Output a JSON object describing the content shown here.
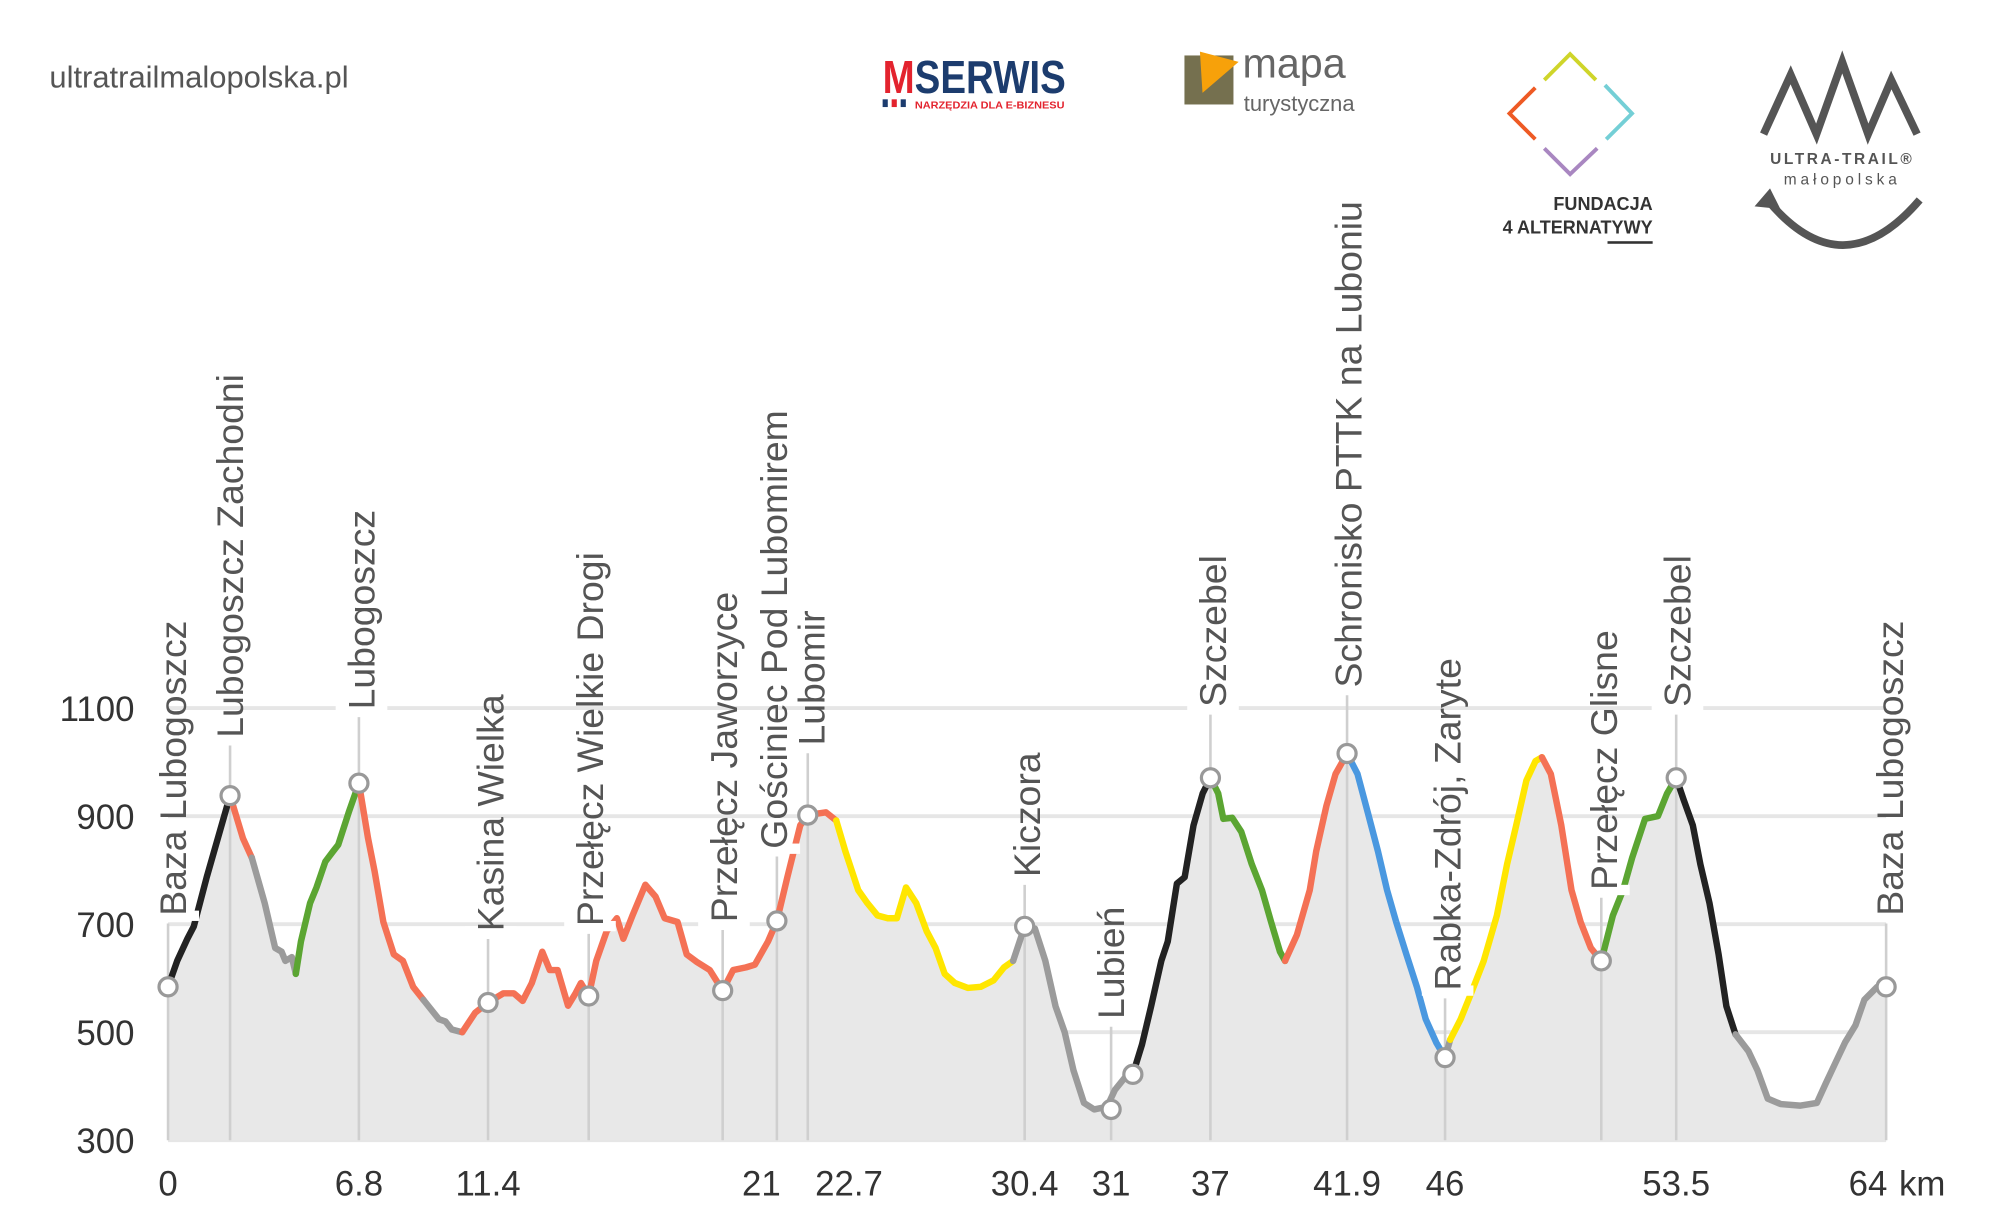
{
  "header": {
    "site": "ultratrailmalopolska.pl"
  },
  "logos": {
    "mserwis": {
      "m": "M",
      "rest": "SERWIS",
      "tagline": "NARZĘDZIA DLA E-BIZNESU"
    },
    "mapa": {
      "line1": "mapa",
      "line2": "turystyczna"
    },
    "fundacja": {
      "line1": "FUNDACJA",
      "line2": "4 ALTERNATYWY"
    },
    "utmp": {
      "line1": "ULTRA-TRAIL®",
      "line2": "małopolska"
    }
  },
  "colors": {
    "black": "#222222",
    "red": "#f47155",
    "gray": "#9b9b9b",
    "green": "#5ba532",
    "yellow": "#ffe600",
    "blue": "#4a98e0",
    "fill": "#e8e8e8",
    "grid": "#e6e6e6"
  },
  "chart_data": {
    "type": "area",
    "title": "",
    "xlabel": "",
    "x_unit": "km",
    "ylabel": "",
    "ylim": [
      300,
      1100
    ],
    "yticks": [
      300,
      500,
      700,
      900,
      1100
    ],
    "xlim": [
      0,
      64
    ],
    "grid": true,
    "segments": [
      {
        "color": "black",
        "points": [
          [
            0,
            584
          ],
          [
            0.34,
            632
          ],
          [
            0.72,
            673
          ],
          [
            0.96,
            696
          ],
          [
            1.44,
            787
          ],
          [
            2.31,
            938
          ]
        ]
      },
      {
        "color": "red",
        "points": [
          [
            2.31,
            938
          ],
          [
            2.79,
            859
          ],
          [
            3.12,
            823
          ]
        ]
      },
      {
        "color": "gray",
        "points": [
          [
            3.12,
            823
          ],
          [
            3.6,
            739
          ],
          [
            3.99,
            656
          ],
          [
            4.23,
            649
          ],
          [
            4.37,
            632
          ],
          [
            4.61,
            639
          ],
          [
            4.76,
            608
          ]
        ]
      },
      {
        "color": "green",
        "points": [
          [
            4.76,
            608
          ],
          [
            4.95,
            668
          ],
          [
            5.29,
            739
          ],
          [
            5.53,
            768
          ],
          [
            5.86,
            816
          ],
          [
            6.15,
            835
          ],
          [
            6.34,
            847
          ],
          [
            6.73,
            907
          ],
          [
            7.11,
            961
          ]
        ]
      },
      {
        "color": "red",
        "points": [
          [
            7.11,
            961
          ],
          [
            7.45,
            859
          ],
          [
            7.69,
            799
          ],
          [
            8.02,
            704
          ],
          [
            8.41,
            644
          ],
          [
            8.75,
            632
          ],
          [
            9.13,
            584
          ],
          [
            9.51,
            560
          ]
        ]
      },
      {
        "color": "gray",
        "points": [
          [
            9.51,
            560
          ],
          [
            10.09,
            524
          ],
          [
            10.33,
            520
          ],
          [
            10.57,
            505
          ],
          [
            10.96,
            500
          ]
        ]
      },
      {
        "color": "red",
        "points": [
          [
            10.96,
            500
          ],
          [
            11.44,
            536
          ],
          [
            11.92,
            555
          ],
          [
            12.49,
            572
          ],
          [
            12.88,
            572
          ],
          [
            13.21,
            558
          ],
          [
            13.55,
            591
          ],
          [
            13.94,
            649
          ],
          [
            14.22,
            615
          ],
          [
            14.51,
            615
          ],
          [
            14.9,
            549
          ],
          [
            15.18,
            572
          ],
          [
            15.38,
            591
          ],
          [
            15.67,
            567
          ],
          [
            15.95,
            632
          ],
          [
            16.34,
            687
          ],
          [
            16.72,
            711
          ],
          [
            16.96,
            673
          ],
          [
            17.3,
            716
          ],
          [
            17.78,
            773
          ],
          [
            18.16,
            751
          ],
          [
            18.5,
            711
          ],
          [
            18.98,
            704
          ],
          [
            19.32,
            644
          ],
          [
            19.7,
            630
          ],
          [
            20.18,
            615
          ],
          [
            20.66,
            577
          ],
          [
            21.05,
            615
          ],
          [
            21.53,
            620
          ],
          [
            21.86,
            625
          ],
          [
            22.35,
            668
          ],
          [
            22.68,
            706
          ],
          [
            23.07,
            787
          ],
          [
            23.55,
            883
          ],
          [
            23.83,
            902
          ],
          [
            24.51,
            907
          ],
          [
            24.89,
            892
          ]
        ]
      },
      {
        "color": "yellow",
        "points": [
          [
            24.89,
            892
          ],
          [
            25.23,
            835
          ],
          [
            25.71,
            763
          ],
          [
            26.05,
            739
          ],
          [
            26.43,
            716
          ],
          [
            26.81,
            711
          ],
          [
            27.15,
            711
          ],
          [
            27.49,
            768
          ],
          [
            27.87,
            739
          ],
          [
            28.26,
            687
          ],
          [
            28.59,
            656
          ],
          [
            28.93,
            608
          ],
          [
            29.31,
            591
          ],
          [
            29.79,
            582
          ],
          [
            30.27,
            584
          ],
          [
            30.75,
            596
          ],
          [
            31.14,
            620
          ],
          [
            31.48,
            632
          ]
        ]
      },
      {
        "color": "gray",
        "points": [
          [
            31.48,
            632
          ],
          [
            31.91,
            696
          ],
          [
            32.29,
            692
          ],
          [
            32.68,
            632
          ],
          [
            33.06,
            548
          ],
          [
            33.4,
            500
          ],
          [
            33.73,
            429
          ],
          [
            34.12,
            369
          ],
          [
            34.5,
            357
          ],
          [
            34.98,
            362
          ],
          [
            35.27,
            393
          ],
          [
            35.66,
            417
          ],
          [
            35.94,
            422
          ]
        ]
      },
      {
        "color": "black",
        "points": [
          [
            35.94,
            422
          ],
          [
            36.28,
            477
          ],
          [
            36.62,
            548
          ],
          [
            37,
            632
          ],
          [
            37.24,
            668
          ],
          [
            37.58,
            775
          ],
          [
            37.87,
            787
          ],
          [
            38.2,
            883
          ],
          [
            38.54,
            942
          ],
          [
            38.83,
            971
          ]
        ]
      },
      {
        "color": "green",
        "points": [
          [
            38.83,
            971
          ],
          [
            39.12,
            942
          ],
          [
            39.31,
            895
          ],
          [
            39.64,
            897
          ],
          [
            39.98,
            871
          ],
          [
            40.37,
            811
          ],
          [
            40.75,
            763
          ],
          [
            41.09,
            704
          ],
          [
            41.42,
            649
          ],
          [
            41.61,
            632
          ]
        ]
      },
      {
        "color": "red",
        "points": [
          [
            41.61,
            632
          ],
          [
            42.05,
            680
          ],
          [
            42.53,
            763
          ],
          [
            42.77,
            835
          ],
          [
            43.15,
            919
          ],
          [
            43.49,
            978
          ],
          [
            43.92,
            1016
          ]
        ]
      },
      {
        "color": "blue",
        "points": [
          [
            43.92,
            1016
          ],
          [
            44.31,
            978
          ],
          [
            44.69,
            907
          ],
          [
            45.07,
            835
          ],
          [
            45.41,
            763
          ],
          [
            45.75,
            704
          ],
          [
            46.13,
            644
          ],
          [
            46.52,
            584
          ],
          [
            46.85,
            524
          ],
          [
            47.24,
            481
          ],
          [
            47.57,
            453
          ]
        ]
      },
      {
        "color": "gray",
        "points": [
          [
            47.57,
            453
          ],
          [
            47.76,
            486
          ]
        ]
      },
      {
        "color": "yellow",
        "points": [
          [
            47.76,
            486
          ],
          [
            48.15,
            524
          ],
          [
            48.54,
            572
          ],
          [
            49.01,
            632
          ],
          [
            49.5,
            716
          ],
          [
            49.88,
            811
          ],
          [
            50.22,
            883
          ],
          [
            50.6,
            966
          ],
          [
            50.94,
            1002
          ],
          [
            51.18,
            1009
          ]
        ]
      },
      {
        "color": "red",
        "points": [
          [
            51.18,
            1009
          ],
          [
            51.51,
            978
          ],
          [
            51.9,
            883
          ],
          [
            52.28,
            763
          ],
          [
            52.62,
            704
          ],
          [
            53,
            656
          ],
          [
            53.39,
            632
          ]
        ]
      },
      {
        "color": "green",
        "points": [
          [
            53.39,
            632
          ],
          [
            53.82,
            716
          ],
          [
            54.2,
            763
          ],
          [
            54.54,
            823
          ],
          [
            55.02,
            895
          ],
          [
            55.5,
            900
          ],
          [
            55.84,
            942
          ],
          [
            56.18,
            971
          ]
        ]
      },
      {
        "color": "black",
        "points": [
          [
            56.18,
            971
          ],
          [
            56.46,
            930
          ],
          [
            56.8,
            883
          ],
          [
            57.08,
            811
          ],
          [
            57.42,
            739
          ],
          [
            57.76,
            644
          ],
          [
            58.05,
            548
          ],
          [
            58.39,
            496
          ]
        ]
      },
      {
        "color": "gray",
        "points": [
          [
            58.39,
            496
          ],
          [
            58.87,
            465
          ],
          [
            59.21,
            429
          ],
          [
            59.59,
            377
          ],
          [
            60.07,
            367
          ],
          [
            60.79,
            364
          ],
          [
            61.42,
            369
          ],
          [
            61.75,
            405
          ],
          [
            62.09,
            441
          ],
          [
            62.47,
            481
          ],
          [
            62.86,
            513
          ],
          [
            63.19,
            560
          ],
          [
            63.67,
            584
          ],
          [
            64,
            584
          ]
        ]
      }
    ],
    "waypoints": [
      {
        "name": "Baza Lubogoszcz",
        "km": 0,
        "ele": 584,
        "tick": "0"
      },
      {
        "name": "Lubogoszcz Zachodni",
        "km": 2.31,
        "ele": 938,
        "tick": ""
      },
      {
        "name": "Lubogoszcz",
        "km": 7.11,
        "ele": 961,
        "tick": "6.8"
      },
      {
        "name": "Kasina Wielka",
        "km": 11.92,
        "ele": 555,
        "tick": "11.4"
      },
      {
        "name": "Przełęcz Wielkie Drogi",
        "km": 15.67,
        "ele": 567,
        "tick": ""
      },
      {
        "name": "Przełęcz  Jaworzyce",
        "km": 20.66,
        "ele": 577,
        "tick": ""
      },
      {
        "name": "Gościniec Pod Lubomirem",
        "km": 22.68,
        "ele": 706,
        "tick": "21"
      },
      {
        "name": "Lubomir",
        "km": 23.83,
        "ele": 902,
        "tick": "22.7"
      },
      {
        "name": "Kiczora",
        "km": 31.91,
        "ele": 696,
        "tick": "30.4"
      },
      {
        "name": "Lubień",
        "km": 35.13,
        "ele": 357,
        "tick": "31"
      },
      {
        "name": "",
        "km": 35.94,
        "ele": 422,
        "tick": ""
      },
      {
        "name": "Szczebel",
        "km": 38.83,
        "ele": 971,
        "tick": "37"
      },
      {
        "name": "Schronisko PTTK na Luboniu",
        "km": 43.92,
        "ele": 1016,
        "tick": "41.9"
      },
      {
        "name": "Rabka-Zdrój,  Zaryte",
        "km": 47.57,
        "ele": 453,
        "tick": "46"
      },
      {
        "name": "Przełęcz Glisne",
        "km": 53.39,
        "ele": 632,
        "tick": ""
      },
      {
        "name": "Szczebel",
        "km": 56.18,
        "ele": 971,
        "tick": "53.5"
      },
      {
        "name": "Baza Lubogoszcz",
        "km": 64,
        "ele": 584,
        "tick": "64"
      }
    ]
  }
}
